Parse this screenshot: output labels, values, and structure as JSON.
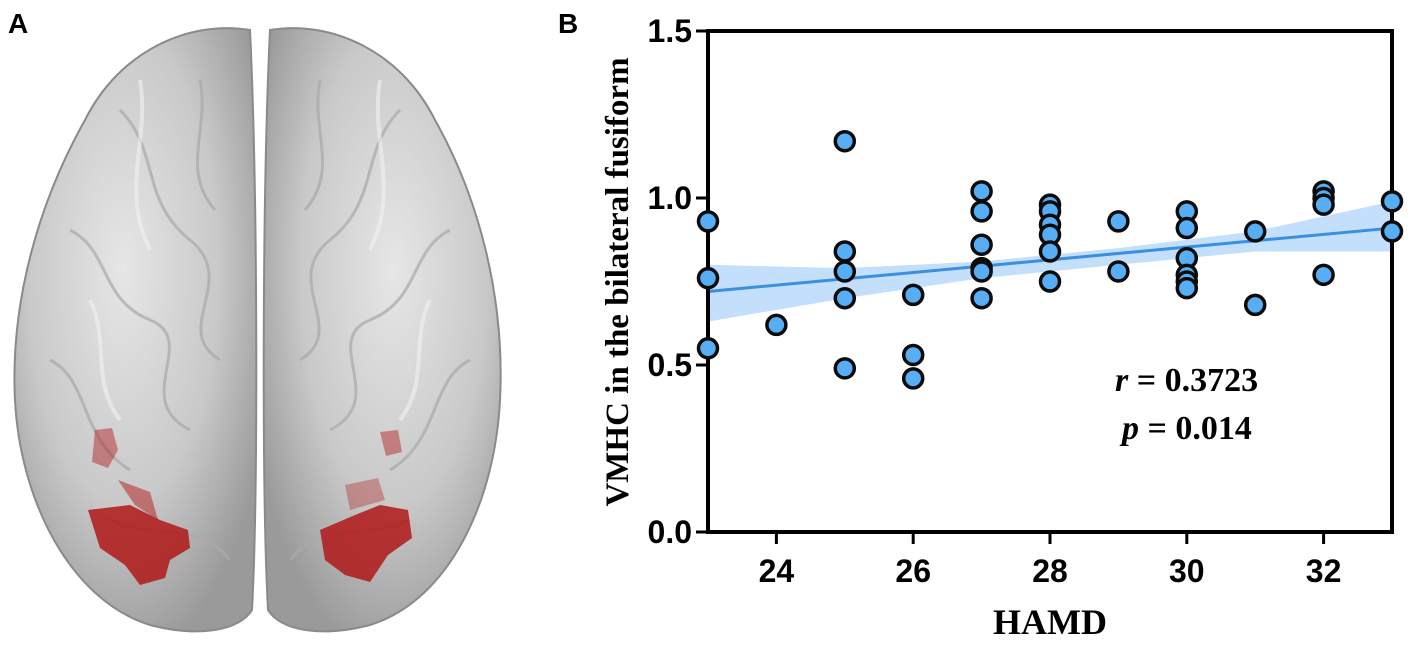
{
  "panels": {
    "a_label": "A",
    "b_label": "B"
  },
  "colors": {
    "point_fill": "#58aef5",
    "point_stroke": "#0b0b0b",
    "fit_line": "#3a8fe0",
    "ci_band": "#b9d9fa",
    "brain_surface": "#c8c8c8",
    "cluster": "#b01818"
  },
  "chart_data": {
    "type": "scatter",
    "xlabel": "HAMD",
    "ylabel": "VMHC in the bilateral fusiform",
    "xlim": [
      23,
      33
    ],
    "ylim": [
      0.0,
      1.5
    ],
    "x_ticks": [
      24,
      26,
      28,
      30,
      32
    ],
    "y_ticks": [
      0.0,
      0.5,
      1.0,
      1.5
    ],
    "y_tick_labels": [
      "0.0",
      "0.5",
      "1.0",
      "1.5"
    ],
    "grid": false,
    "points": [
      [
        23,
        0.93
      ],
      [
        23,
        0.76
      ],
      [
        23,
        0.55
      ],
      [
        24,
        0.62
      ],
      [
        25,
        1.17
      ],
      [
        25,
        0.84
      ],
      [
        25,
        0.78
      ],
      [
        25,
        0.7
      ],
      [
        25,
        0.49
      ],
      [
        26,
        0.71
      ],
      [
        26,
        0.53
      ],
      [
        26,
        0.46
      ],
      [
        27,
        1.02
      ],
      [
        27,
        0.96
      ],
      [
        27,
        0.86
      ],
      [
        27,
        0.79
      ],
      [
        27,
        0.78
      ],
      [
        27,
        0.7
      ],
      [
        28,
        0.98
      ],
      [
        28,
        0.96
      ],
      [
        28,
        0.92
      ],
      [
        28,
        0.89
      ],
      [
        28,
        0.84
      ],
      [
        28,
        0.75
      ],
      [
        29,
        0.93
      ],
      [
        29,
        0.78
      ],
      [
        30,
        0.96
      ],
      [
        30,
        0.91
      ],
      [
        30,
        0.82
      ],
      [
        30,
        0.77
      ],
      [
        30,
        0.75
      ],
      [
        30,
        0.73
      ],
      [
        31,
        0.9
      ],
      [
        31,
        0.68
      ],
      [
        32,
        1.02
      ],
      [
        32,
        1.0
      ],
      [
        32,
        0.98
      ],
      [
        32,
        0.77
      ],
      [
        33,
        0.99
      ],
      [
        33,
        0.9
      ]
    ],
    "fit_line": {
      "x": [
        23,
        33
      ],
      "y": [
        0.72,
        0.91
      ]
    },
    "ci_band": {
      "x": [
        23,
        25,
        27,
        29,
        31,
        33
      ],
      "upper": [
        0.8,
        0.79,
        0.81,
        0.85,
        0.9,
        0.99
      ],
      "lower": [
        0.63,
        0.7,
        0.76,
        0.8,
        0.84,
        0.84
      ]
    },
    "annotations": {
      "r_symbol": "r",
      "r_text": " = 0.3723",
      "p_symbol": "p",
      "p_text": " = 0.014"
    }
  }
}
